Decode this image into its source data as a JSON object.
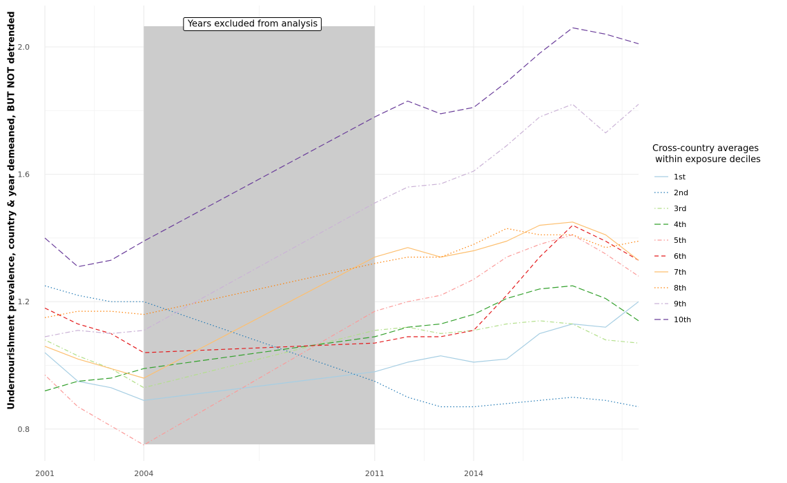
{
  "chart_data": {
    "type": "line",
    "title": "",
    "xlabel": "",
    "ylabel": "Undernourishment prevalence, country & year demeaned, BUT NOT detrended",
    "xlim": [
      2001,
      2019
    ],
    "ylim": [
      0.7,
      2.13
    ],
    "x_ticks": [
      2001,
      2004,
      2011,
      2014
    ],
    "y_ticks": [
      0.8,
      1.2,
      1.6,
      2.0
    ],
    "y_tick_labels": [
      "0.8",
      "1.2",
      "1.6",
      "2.0"
    ],
    "x_minor_ticks": [
      2002.5,
      2007.5,
      2012.5,
      2015.5,
      2018.5
    ],
    "y_minor_ticks": [
      1.0,
      1.4,
      1.8
    ],
    "grid": true,
    "x": [
      2001,
      2002,
      2003,
      2004,
      2011,
      2012,
      2013,
      2014,
      2015,
      2016,
      2017,
      2018,
      2019
    ],
    "excluded_region": {
      "x": [
        2004,
        2011
      ],
      "y": [
        0.752,
        2.065
      ],
      "label": "Years excluded from analysis",
      "label_x": 2007.3,
      "label_y": 2.065
    },
    "legend": {
      "title_line1": "Cross-country averages",
      "title_line2": " within exposure deciles",
      "placement": "right"
    },
    "series": [
      {
        "name": "1st",
        "color": "#a6cee3",
        "dash": "solid",
        "values": [
          1.04,
          0.95,
          0.93,
          0.89,
          0.98,
          1.01,
          1.03,
          1.01,
          1.02,
          1.1,
          1.13,
          1.12,
          1.2
        ]
      },
      {
        "name": "2nd",
        "color": "#1f78b4",
        "dash": "dotted",
        "values": [
          1.25,
          1.22,
          1.2,
          1.2,
          0.95,
          0.9,
          0.87,
          0.87,
          0.88,
          0.89,
          0.9,
          0.89,
          0.87
        ]
      },
      {
        "name": "3rd",
        "color": "#b2df8a",
        "dash": "dotdash",
        "values": [
          1.08,
          1.03,
          0.99,
          0.93,
          1.11,
          1.12,
          1.1,
          1.11,
          1.13,
          1.14,
          1.13,
          1.08,
          1.07
        ]
      },
      {
        "name": "4th",
        "color": "#33a02c",
        "dash": "longdash",
        "values": [
          0.92,
          0.95,
          0.96,
          0.99,
          1.09,
          1.12,
          1.13,
          1.16,
          1.21,
          1.24,
          1.25,
          1.21,
          1.14
        ]
      },
      {
        "name": "5th",
        "color": "#fb9a99",
        "dash": "dotdash",
        "values": [
          0.97,
          0.87,
          0.81,
          0.75,
          1.17,
          1.2,
          1.22,
          1.27,
          1.34,
          1.38,
          1.41,
          1.35,
          1.28
        ]
      },
      {
        "name": "6th",
        "color": "#e31a1c",
        "dash": "dashed",
        "values": [
          1.18,
          1.13,
          1.1,
          1.04,
          1.07,
          1.09,
          1.09,
          1.11,
          1.22,
          1.34,
          1.44,
          1.39,
          1.33
        ]
      },
      {
        "name": "7th",
        "color": "#fdbf6f",
        "dash": "solid",
        "values": [
          1.06,
          1.02,
          0.99,
          0.96,
          1.34,
          1.37,
          1.34,
          1.36,
          1.39,
          1.44,
          1.45,
          1.41,
          1.33
        ]
      },
      {
        "name": "8th",
        "color": "#ff7f00",
        "dash": "dotted",
        "values": [
          1.15,
          1.17,
          1.17,
          1.16,
          1.32,
          1.34,
          1.34,
          1.38,
          1.43,
          1.41,
          1.41,
          1.37,
          1.39
        ]
      },
      {
        "name": "9th",
        "color": "#cab2d6",
        "dash": "twodash",
        "values": [
          1.09,
          1.11,
          1.1,
          1.11,
          1.51,
          1.56,
          1.57,
          1.61,
          1.69,
          1.78,
          1.82,
          1.73,
          1.82
        ]
      },
      {
        "name": "10th",
        "color": "#6a3d9a",
        "dash": "longdash",
        "values": [
          1.4,
          1.31,
          1.33,
          1.39,
          1.78,
          1.83,
          1.79,
          1.81,
          1.89,
          1.98,
          2.06,
          2.04,
          2.01
        ]
      }
    ]
  }
}
